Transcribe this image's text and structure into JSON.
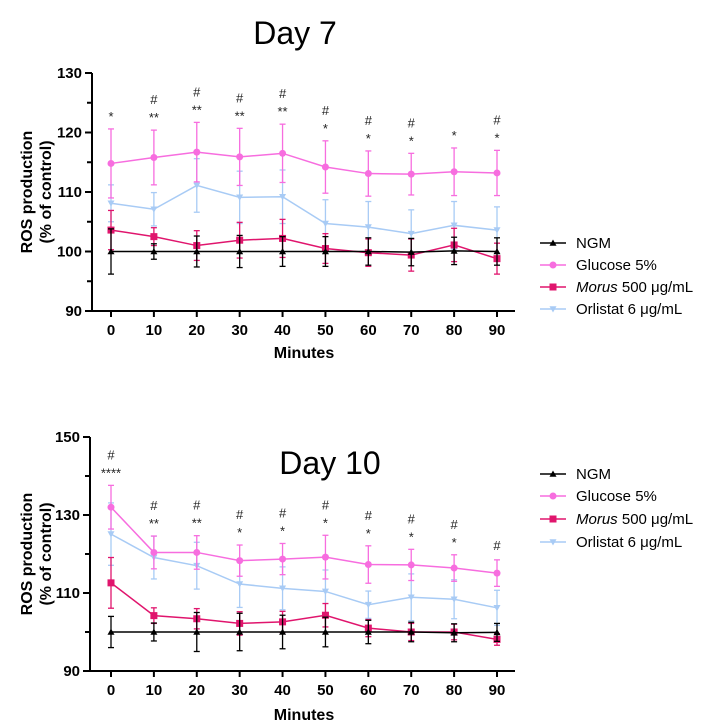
{
  "chart_data": [
    {
      "type": "line",
      "title": "Day 7",
      "xlabel": "Minutes",
      "ylabel": [
        "ROS production",
        "(% of control)"
      ],
      "x": [
        0,
        10,
        20,
        30,
        40,
        50,
        60,
        70,
        80,
        90
      ],
      "ylim": [
        90,
        130
      ],
      "yticks": [
        90,
        100,
        110,
        120,
        130
      ],
      "minor_step": 5,
      "series": [
        {
          "name": "NGM",
          "italic": "",
          "rest": "NGM",
          "color": "#000000",
          "marker": "triangle",
          "values": [
            100,
            100,
            100,
            100,
            100,
            100,
            100,
            99.9,
            100.1,
            100
          ],
          "errors": [
            3.8,
            1.3,
            2.6,
            2.7,
            2.5,
            2.5,
            2.3,
            2.3,
            2.3,
            2.3
          ]
        },
        {
          "name": "Glucose 5%",
          "italic": "",
          "rest": "Glucose 5%",
          "color": "#f76ddf",
          "marker": "circle",
          "values": [
            114.8,
            115.8,
            116.7,
            115.9,
            116.5,
            114.2,
            113.1,
            113.0,
            113.4,
            113.2
          ],
          "errors": [
            5.8,
            4.6,
            5.0,
            4.8,
            4.9,
            4.4,
            3.8,
            3.5,
            4.0,
            3.8
          ]
        },
        {
          "name": "Morus 500 μg/mL",
          "italic": "Morus",
          "rest": " 500 μg/mL",
          "color": "#e0156d",
          "marker": "square",
          "values": [
            103.6,
            102.5,
            101.0,
            101.9,
            102.2,
            100.5,
            99.8,
            99.4,
            101.1,
            98.8
          ],
          "errors": [
            3.3,
            1.5,
            2.5,
            3.0,
            3.2,
            2.5,
            2.3,
            2.7,
            2.8,
            2.6
          ]
        },
        {
          "name": "Orlistat 6 μg/mL",
          "italic": "",
          "rest": "Orlistat 6 μg/mL",
          "color": "#a8cbf5",
          "marker": "triangle-down",
          "values": [
            108.1,
            107.1,
            111.1,
            109.1,
            109.2,
            104.7,
            104.1,
            103.0,
            104.4,
            103.6
          ],
          "errors": [
            3.1,
            2.8,
            4.5,
            4.4,
            4.5,
            4.0,
            4.3,
            4.0,
            4.0,
            3.9
          ]
        }
      ],
      "annotations": {
        "hash": [
          "",
          "#",
          "#",
          "#",
          "#",
          "#",
          "#",
          "#",
          "",
          "#"
        ],
        "stars": [
          "*",
          "**",
          "**",
          "**",
          "**",
          "*",
          "*",
          "*",
          "*",
          "*"
        ]
      }
    },
    {
      "type": "line",
      "title": "Day 10",
      "xlabel": "Minutes",
      "ylabel": [
        "ROS production",
        "(% of control)"
      ],
      "x": [
        0,
        10,
        20,
        30,
        40,
        50,
        60,
        70,
        80,
        90
      ],
      "ylim": [
        90,
        150
      ],
      "yticks": [
        90,
        110,
        130,
        150
      ],
      "minor_step": 10,
      "series": [
        {
          "name": "NGM",
          "italic": "",
          "rest": "NGM",
          "color": "#000000",
          "marker": "triangle",
          "values": [
            100,
            100,
            100,
            100,
            100,
            100,
            100,
            100,
            99.8,
            99.9
          ],
          "errors": [
            4,
            2.3,
            5,
            4.8,
            4.3,
            3.8,
            3,
            2.5,
            2.3,
            2.3
          ]
        },
        {
          "name": "Glucose 5%",
          "italic": "",
          "rest": "Glucose 5%",
          "color": "#f76ddf",
          "marker": "circle",
          "values": [
            132,
            120.4,
            120.4,
            118.3,
            118.7,
            119.2,
            117.3,
            117.2,
            116.4,
            115.1
          ],
          "errors": [
            5.6,
            4.2,
            4.3,
            4.0,
            4.0,
            5.6,
            4.8,
            4.0,
            3.4,
            3.4
          ]
        },
        {
          "name": "Morus 500 μg/mL",
          "italic": "Morus",
          "rest": " 500 μg/mL",
          "color": "#e0156d",
          "marker": "square",
          "values": [
            112.6,
            104.2,
            103.4,
            102.2,
            102.6,
            104.3,
            101.0,
            100.0,
            100.0,
            98.1
          ],
          "errors": [
            6.5,
            2,
            2.6,
            3,
            2.7,
            3,
            2.2,
            2.2,
            2,
            1.5
          ]
        },
        {
          "name": "Orlistat 6 μg/mL",
          "italic": "",
          "rest": "Orlistat 6 μg/mL",
          "color": "#a8cbf5",
          "marker": "triangle-down",
          "values": [
            125.1,
            119.1,
            117.0,
            112.3,
            111.2,
            110.4,
            107.0,
            108.9,
            108.4,
            106.2
          ],
          "errors": [
            8,
            5.5,
            6,
            6,
            5.5,
            5.5,
            3.5,
            6,
            5,
            4.5
          ]
        }
      ],
      "annotations": {
        "hash": [
          "#",
          "#",
          "#",
          "#",
          "#",
          "#",
          "#",
          "#",
          "#",
          "#"
        ],
        "stars": [
          "****",
          "**",
          "**",
          "*",
          "*",
          "*",
          "*",
          "*",
          "*",
          ""
        ]
      }
    }
  ]
}
